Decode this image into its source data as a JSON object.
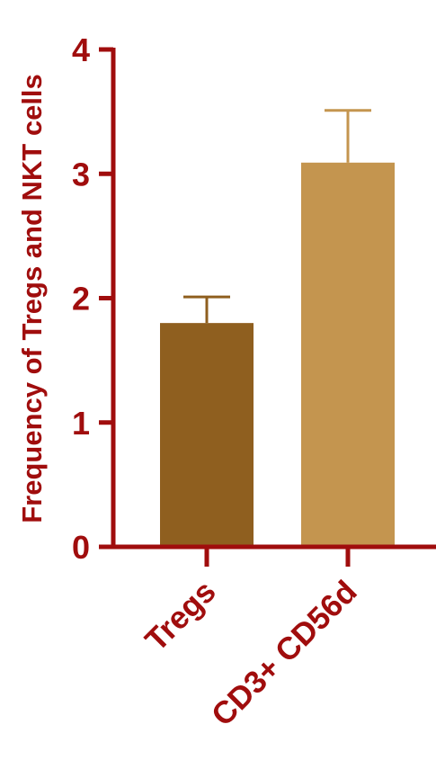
{
  "chart_data": {
    "type": "bar",
    "title": "",
    "xlabel": "",
    "ylabel": "Frequency of Tregs and NKT cells",
    "ylim": [
      0,
      4
    ],
    "yticks": [
      0,
      1,
      2,
      3,
      4
    ],
    "categories": [
      "Tregs",
      "CD3+ CD56d"
    ],
    "values": [
      1.8,
      3.09
    ],
    "error_upper": [
      0.21,
      0.42
    ],
    "bar_colors": [
      "#8f5f1f",
      "#c4954f"
    ],
    "error_colors": [
      "#8f5f1f",
      "#c4954f"
    ],
    "axis_color": "#a00d0d",
    "label_color": "#a00d0d",
    "grid": false,
    "legend": "none"
  }
}
